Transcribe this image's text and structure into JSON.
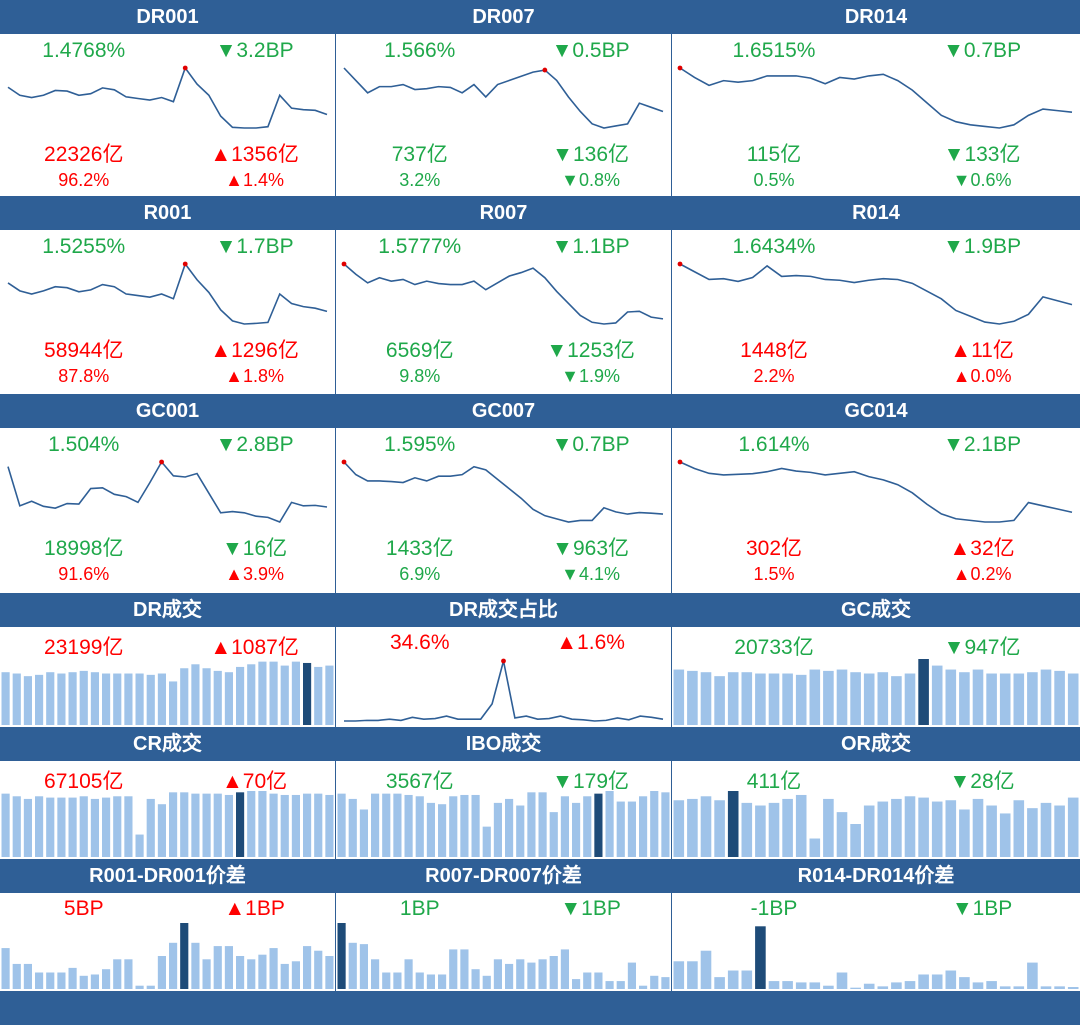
{
  "colors": {
    "header_bg": "#2f5f96",
    "up": "#ff0000",
    "down": "#1fa84a",
    "line": "#2f5f96",
    "bar": "#9fc3e9",
    "bar_hl": "#1e4b78",
    "dot": "#e00000"
  },
  "rate_tiles": [
    {
      "id": "dr001",
      "title": "DR001",
      "rate": "1.4768%",
      "rate_color": "down",
      "chg": "▼3.2BP",
      "chg_color": "down",
      "vol": "22326亿",
      "vol_color": "up",
      "vol_chg": "▲1356亿",
      "vol_chg_color": "up",
      "share": "96.2%",
      "share_color": "up",
      "share_chg": "▲1.4%",
      "share_chg_color": "up",
      "chart_data": {
        "type": "line",
        "x": [
          1,
          2,
          3,
          4,
          5,
          6,
          7,
          8,
          9,
          10,
          11,
          12,
          13,
          14,
          15,
          16,
          17,
          18,
          19,
          20,
          21,
          22,
          23,
          24,
          25,
          26,
          27,
          28
        ],
        "values": [
          1.6,
          1.575,
          1.568,
          1.575,
          1.59,
          1.588,
          1.575,
          1.58,
          1.598,
          1.592,
          1.57,
          1.565,
          1.56,
          1.568,
          1.555,
          1.66,
          1.61,
          1.575,
          1.51,
          1.475,
          1.473,
          1.473,
          1.477,
          1.575,
          1.535,
          1.53,
          1.528,
          1.515
        ],
        "peak_index": 15
      }
    },
    {
      "id": "dr007",
      "title": "DR007",
      "rate": "1.566%",
      "rate_color": "down",
      "chg": "▼0.5BP",
      "chg_color": "down",
      "vol": "737亿",
      "vol_color": "down",
      "vol_chg": "▼136亿",
      "vol_chg_color": "down",
      "share": "3.2%",
      "share_color": "down",
      "share_chg": "▼0.8%",
      "share_chg_color": "down",
      "chart_data": {
        "type": "line",
        "x": [
          1,
          2,
          3,
          4,
          5,
          6,
          7,
          8,
          9,
          10,
          11,
          12,
          13,
          14,
          15,
          16,
          17,
          18,
          19,
          20,
          21,
          22,
          23,
          24,
          25,
          26,
          27,
          28
        ],
        "values": [
          1.71,
          1.68,
          1.65,
          1.665,
          1.665,
          1.67,
          1.658,
          1.66,
          1.665,
          1.663,
          1.65,
          1.67,
          1.64,
          1.67,
          1.68,
          1.69,
          1.7,
          1.705,
          1.68,
          1.64,
          1.605,
          1.575,
          1.565,
          1.57,
          1.575,
          1.625,
          1.615,
          1.605
        ],
        "peak_index": 17
      }
    },
    {
      "id": "dr014",
      "title": "DR014",
      "rate": "1.6515%",
      "rate_color": "down",
      "chg": "▼0.7BP",
      "chg_color": "down",
      "vol": "115亿",
      "vol_color": "down",
      "vol_chg": "▼133亿",
      "vol_chg_color": "down",
      "share": "0.5%",
      "share_color": "down",
      "share_chg": "▼0.6%",
      "share_chg_color": "down",
      "chart_data": {
        "type": "line",
        "x": [
          1,
          2,
          3,
          4,
          5,
          6,
          7,
          8,
          9,
          10,
          11,
          12,
          13,
          14,
          15,
          16,
          17,
          18,
          19,
          20,
          21,
          22,
          23,
          24,
          25,
          26,
          27,
          28
        ],
        "values": [
          1.84,
          1.81,
          1.785,
          1.8,
          1.795,
          1.8,
          1.815,
          1.815,
          1.815,
          1.808,
          1.79,
          1.81,
          1.805,
          1.815,
          1.82,
          1.8,
          1.77,
          1.73,
          1.69,
          1.67,
          1.66,
          1.655,
          1.65,
          1.66,
          1.69,
          1.71,
          1.705,
          1.7
        ],
        "peak_index": 0
      }
    },
    {
      "id": "r001",
      "title": "R001",
      "rate": "1.5255%",
      "rate_color": "down",
      "chg": "▼1.7BP",
      "chg_color": "down",
      "vol": "58944亿",
      "vol_color": "up",
      "vol_chg": "▲1296亿",
      "vol_chg_color": "up",
      "share": "87.8%",
      "share_color": "up",
      "share_chg": "▲1.8%",
      "share_chg_color": "up",
      "chart_data": {
        "type": "line",
        "x": [
          1,
          2,
          3,
          4,
          5,
          6,
          7,
          8,
          9,
          10,
          11,
          12,
          13,
          14,
          15,
          16,
          17,
          18,
          19,
          20,
          21,
          22,
          23,
          24,
          25,
          26,
          27,
          28
        ],
        "values": [
          1.64,
          1.615,
          1.605,
          1.615,
          1.628,
          1.625,
          1.612,
          1.618,
          1.635,
          1.628,
          1.605,
          1.6,
          1.595,
          1.605,
          1.59,
          1.7,
          1.65,
          1.61,
          1.555,
          1.52,
          1.51,
          1.512,
          1.515,
          1.605,
          1.575,
          1.565,
          1.56,
          1.55
        ],
        "peak_index": 15
      }
    },
    {
      "id": "r007",
      "title": "R007",
      "rate": "1.5777%",
      "rate_color": "down",
      "chg": "▼1.1BP",
      "chg_color": "down",
      "vol": "6569亿",
      "vol_color": "down",
      "vol_chg": "▼1253亿",
      "vol_chg_color": "down",
      "share": "9.8%",
      "share_color": "down",
      "share_chg": "▼1.9%",
      "share_chg_color": "down",
      "chart_data": {
        "type": "line",
        "x": [
          1,
          2,
          3,
          4,
          5,
          6,
          7,
          8,
          9,
          10,
          11,
          12,
          13,
          14,
          15,
          16,
          17,
          18,
          19,
          20,
          21,
          22,
          23,
          24,
          25,
          26,
          27,
          28
        ],
        "values": [
          1.75,
          1.72,
          1.695,
          1.71,
          1.7,
          1.705,
          1.69,
          1.7,
          1.693,
          1.69,
          1.69,
          1.7,
          1.675,
          1.695,
          1.715,
          1.725,
          1.738,
          1.71,
          1.67,
          1.635,
          1.6,
          1.58,
          1.575,
          1.578,
          1.61,
          1.612,
          1.595,
          1.59
        ],
        "peak_index": 0
      }
    },
    {
      "id": "r014",
      "title": "R014",
      "rate": "1.6434%",
      "rate_color": "down",
      "chg": "▼1.9BP",
      "chg_color": "down",
      "vol": "1448亿",
      "vol_color": "up",
      "vol_chg": "▲11亿",
      "vol_chg_color": "up",
      "share": "2.2%",
      "share_color": "up",
      "share_chg": "▲0.0%",
      "share_chg_color": "up",
      "chart_data": {
        "type": "line",
        "x": [
          1,
          2,
          3,
          4,
          5,
          6,
          7,
          8,
          9,
          10,
          11,
          12,
          13,
          14,
          15,
          16,
          17,
          18,
          19,
          20,
          21,
          22,
          23,
          24,
          25,
          26,
          27,
          28
        ],
        "values": [
          1.86,
          1.84,
          1.82,
          1.822,
          1.815,
          1.825,
          1.855,
          1.828,
          1.83,
          1.828,
          1.82,
          1.818,
          1.812,
          1.818,
          1.822,
          1.82,
          1.81,
          1.79,
          1.77,
          1.74,
          1.725,
          1.71,
          1.705,
          1.712,
          1.73,
          1.775,
          1.765,
          1.755
        ],
        "peak_index": 0
      }
    },
    {
      "id": "gc001",
      "title": "GC001",
      "rate": "1.504%",
      "rate_color": "down",
      "chg": "▼2.8BP",
      "chg_color": "down",
      "vol": "18998亿",
      "vol_color": "down",
      "vol_chg": "▼16亿",
      "vol_chg_color": "down",
      "share": "91.6%",
      "share_color": "up",
      "share_chg": "▲3.9%",
      "share_chg_color": "up",
      "chart_data": {
        "type": "line",
        "x": [
          1,
          2,
          3,
          4,
          5,
          6,
          7,
          8,
          9,
          10,
          11,
          12,
          13,
          14,
          15,
          16,
          17,
          18,
          19,
          20,
          21,
          22,
          23,
          24,
          25,
          26,
          27,
          28
        ],
        "values": [
          1.72,
          1.55,
          1.57,
          1.548,
          1.54,
          1.56,
          1.558,
          1.625,
          1.628,
          1.6,
          1.59,
          1.565,
          1.65,
          1.74,
          1.68,
          1.675,
          1.69,
          1.605,
          1.52,
          1.525,
          1.52,
          1.505,
          1.5,
          1.48,
          1.565,
          1.55,
          1.552,
          1.545
        ],
        "peak_index": 13
      }
    },
    {
      "id": "gc007",
      "title": "GC007",
      "rate": "1.595%",
      "rate_color": "down",
      "chg": "▼0.7BP",
      "chg_color": "down",
      "vol": "1433亿",
      "vol_color": "down",
      "vol_chg": "▼963亿",
      "vol_chg_color": "down",
      "share": "6.9%",
      "share_color": "down",
      "share_chg": "▼4.1%",
      "share_chg_color": "down",
      "chart_data": {
        "type": "line",
        "x": [
          1,
          2,
          3,
          4,
          5,
          6,
          7,
          8,
          9,
          10,
          11,
          12,
          13,
          14,
          15,
          16,
          17,
          18,
          19,
          20,
          21,
          22,
          23,
          24,
          25,
          26,
          27,
          28
        ],
        "values": [
          1.77,
          1.73,
          1.71,
          1.71,
          1.708,
          1.705,
          1.72,
          1.71,
          1.725,
          1.725,
          1.73,
          1.755,
          1.745,
          1.715,
          1.685,
          1.655,
          1.62,
          1.6,
          1.59,
          1.58,
          1.585,
          1.585,
          1.625,
          1.612,
          1.605,
          1.61,
          1.608,
          1.605
        ],
        "peak_index": 0
      }
    },
    {
      "id": "gc014",
      "title": "GC014",
      "rate": "1.614%",
      "rate_color": "down",
      "chg": "▼2.1BP",
      "chg_color": "down",
      "vol": "302亿",
      "vol_color": "up",
      "vol_chg": "▲32亿",
      "vol_chg_color": "up",
      "share": "1.5%",
      "share_color": "up",
      "share_chg": "▲0.2%",
      "share_chg_color": "up",
      "chart_data": {
        "type": "line",
        "x": [
          1,
          2,
          3,
          4,
          5,
          6,
          7,
          8,
          9,
          10,
          11,
          12,
          13,
          14,
          15,
          16,
          17,
          18,
          19,
          20,
          21,
          22,
          23,
          24,
          25,
          26,
          27,
          28
        ],
        "values": [
          1.84,
          1.82,
          1.805,
          1.8,
          1.802,
          1.804,
          1.81,
          1.82,
          1.812,
          1.808,
          1.8,
          1.805,
          1.81,
          1.795,
          1.785,
          1.77,
          1.745,
          1.71,
          1.68,
          1.665,
          1.66,
          1.655,
          1.655,
          1.66,
          1.715,
          1.705,
          1.695,
          1.685
        ],
        "peak_index": 0
      }
    }
  ],
  "metric_tiles": [
    {
      "id": "dr_vol",
      "title": "DR成交",
      "value": "23199亿",
      "value_color": "up",
      "chg": "▲1087亿",
      "chg_color": "up",
      "chart_data": {
        "type": "bar",
        "values": [
          0.8,
          0.78,
          0.74,
          0.76,
          0.8,
          0.78,
          0.8,
          0.82,
          0.8,
          0.78,
          0.78,
          0.78,
          0.78,
          0.76,
          0.78,
          0.66,
          0.86,
          0.92,
          0.86,
          0.82,
          0.8,
          0.88,
          0.92,
          0.96,
          0.96,
          0.9,
          0.96,
          0.94,
          0.88,
          0.9
        ],
        "highlight_index": 27
      }
    },
    {
      "id": "dr_share",
      "title": "DR成交占比",
      "value": "34.6%",
      "value_color": "up",
      "chg": "▲1.6%",
      "chg_color": "up",
      "chart_data": {
        "type": "line",
        "values": [
          0.02,
          0.02,
          0.03,
          0.03,
          0.05,
          0.03,
          0.08,
          0.05,
          0.06,
          0.1,
          0.05,
          0.05,
          0.05,
          0.3,
          1.0,
          0.07,
          0.1,
          0.05,
          0.06,
          0.1,
          0.05,
          0.04,
          0.02,
          0.03,
          0.07,
          0.04,
          0.1,
          0.08,
          0.05
        ],
        "peak_index": 14
      }
    },
    {
      "id": "gc_vol",
      "title": "GC成交",
      "value": "20733亿",
      "value_color": "down",
      "chg": "▼947亿",
      "chg_color": "down",
      "chart_data": {
        "type": "bar",
        "values": [
          0.84,
          0.82,
          0.8,
          0.74,
          0.8,
          0.8,
          0.78,
          0.78,
          0.78,
          0.76,
          0.84,
          0.82,
          0.84,
          0.8,
          0.78,
          0.8,
          0.74,
          0.78,
          1.0,
          0.9,
          0.84,
          0.8,
          0.84,
          0.78,
          0.78,
          0.78,
          0.8,
          0.84,
          0.82,
          0.78
        ],
        "highlight_index": 18
      }
    },
    {
      "id": "cr_vol",
      "title": "CR成交",
      "value": "67105亿",
      "value_color": "up",
      "chg": "▲70亿",
      "chg_color": "up",
      "chart_data": {
        "type": "bar",
        "values": [
          0.96,
          0.92,
          0.88,
          0.92,
          0.9,
          0.9,
          0.9,
          0.92,
          0.88,
          0.9,
          0.92,
          0.92,
          0.34,
          0.88,
          0.8,
          0.98,
          0.98,
          0.96,
          0.96,
          0.96,
          0.94,
          0.98,
          1.0,
          1.0,
          0.96,
          0.94,
          0.94,
          0.96,
          0.96,
          0.94
        ],
        "highlight_index": 21
      }
    },
    {
      "id": "ibo_vol",
      "title": "IBO成交",
      "value": "3567亿",
      "value_color": "down",
      "chg": "▼179亿",
      "chg_color": "down",
      "chart_data": {
        "type": "bar",
        "values": [
          0.96,
          0.88,
          0.72,
          0.96,
          0.96,
          0.96,
          0.94,
          0.92,
          0.82,
          0.8,
          0.92,
          0.94,
          0.94,
          0.46,
          0.82,
          0.88,
          0.78,
          0.98,
          0.98,
          0.68,
          0.92,
          0.82,
          0.92,
          0.96,
          1.0,
          0.84,
          0.84,
          0.92,
          1.0,
          0.98
        ],
        "highlight_index": 23
      }
    },
    {
      "id": "or_vol",
      "title": "OR成交",
      "value": "411亿",
      "value_color": "down",
      "chg": "▼28亿",
      "chg_color": "down",
      "chart_data": {
        "type": "bar",
        "values": [
          0.86,
          0.88,
          0.92,
          0.86,
          1.0,
          0.82,
          0.78,
          0.82,
          0.88,
          0.94,
          0.28,
          0.88,
          0.68,
          0.5,
          0.78,
          0.84,
          0.88,
          0.92,
          0.9,
          0.84,
          0.86,
          0.72,
          0.88,
          0.78,
          0.66,
          0.86,
          0.74,
          0.82,
          0.78,
          0.9
        ],
        "highlight_index": 4
      }
    },
    {
      "id": "r001_spread",
      "title": "R001-DR001价差",
      "value": "5BP",
      "value_color": "up",
      "chg": "▲1BP",
      "chg_color": "up",
      "chart_data": {
        "type": "bar",
        "values": [
          0.62,
          0.38,
          0.38,
          0.25,
          0.25,
          0.25,
          0.32,
          0.2,
          0.22,
          0.3,
          0.45,
          0.45,
          0.05,
          0.05,
          0.5,
          0.7,
          1.0,
          0.7,
          0.45,
          0.65,
          0.65,
          0.5,
          0.45,
          0.52,
          0.62,
          0.38,
          0.42,
          0.65,
          0.58,
          0.5
        ],
        "highlight_index": 16
      }
    },
    {
      "id": "r007_spread",
      "title": "R007-DR007价差",
      "value": "1BP",
      "value_color": "down",
      "chg": "▼1BP",
      "chg_color": "down",
      "chart_data": {
        "type": "bar",
        "values": [
          1.0,
          0.7,
          0.68,
          0.45,
          0.25,
          0.25,
          0.45,
          0.25,
          0.22,
          0.22,
          0.6,
          0.6,
          0.3,
          0.2,
          0.45,
          0.38,
          0.45,
          0.4,
          0.45,
          0.5,
          0.6,
          0.15,
          0.25,
          0.25,
          0.12,
          0.12,
          0.4,
          0.05,
          0.2,
          0.18
        ],
        "highlight_index": 0
      }
    },
    {
      "id": "r014_spread",
      "title": "R014-DR014价差",
      "value": "-1BP",
      "value_color": "down",
      "chg": "▼1BP",
      "chg_color": "down",
      "chart_data": {
        "type": "bar",
        "values": [
          0.42,
          0.42,
          0.58,
          0.18,
          0.28,
          0.28,
          0.95,
          0.12,
          0.12,
          0.1,
          0.1,
          0.05,
          0.25,
          0.02,
          0.08,
          0.04,
          0.1,
          0.12,
          0.22,
          0.22,
          0.28,
          0.18,
          0.1,
          0.12,
          0.04,
          0.04,
          0.4,
          0.04,
          0.04,
          0.03
        ],
        "highlight_index": 6
      }
    }
  ]
}
